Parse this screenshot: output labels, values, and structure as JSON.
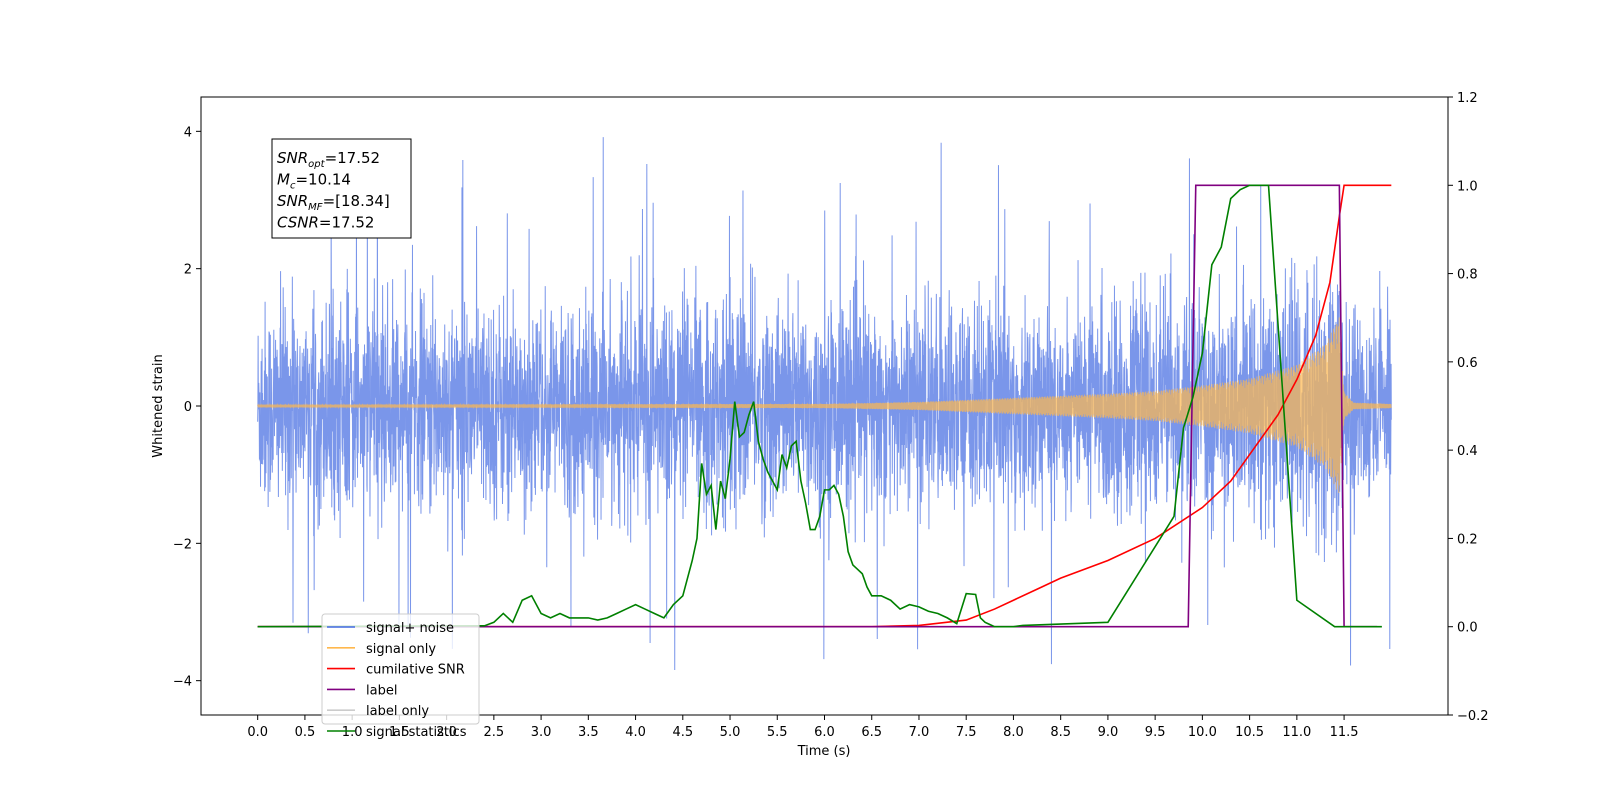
{
  "chart_data": {
    "type": "line",
    "xlabel": "Time (s)",
    "ylabel_left": "Whitened strain",
    "ylabel_right": "",
    "xlim": [
      -0.6,
      12.6
    ],
    "ylim_left": [
      -4.5,
      4.5
    ],
    "ylim_right": [
      -0.2,
      1.2
    ],
    "x_ticks": [
      0.0,
      0.5,
      1.0,
      1.5,
      2.0,
      2.5,
      3.0,
      3.5,
      4.0,
      4.5,
      5.0,
      5.5,
      6.0,
      6.5,
      7.0,
      7.5,
      8.0,
      8.5,
      9.0,
      9.5,
      10.0,
      10.5,
      11.0,
      11.5
    ],
    "x_tick_labels": [
      "0.0",
      "0.5",
      "1.0",
      "1.5",
      "2.0",
      "2.5",
      "3.0",
      "3.5",
      "4.0",
      "4.5",
      "5.0",
      "5.5",
      "6.0",
      "6.5",
      "7.0",
      "7.5",
      "8.0",
      "8.5",
      "9.0",
      "9.5",
      "10.0",
      "10.5",
      "11.0",
      "11.5"
    ],
    "y_left_ticks": [
      -4,
      -2,
      0,
      2,
      4
    ],
    "y_left_tick_labels": [
      "−4",
      "−2",
      "0",
      "2",
      "4"
    ],
    "y_right_ticks": [
      -0.2,
      0.0,
      0.2,
      0.4,
      0.6,
      0.8,
      1.0,
      1.2
    ],
    "y_right_tick_labels": [
      "−0.2",
      "0.0",
      "0.2",
      "0.4",
      "0.6",
      "0.8",
      "1.0",
      "1.2"
    ],
    "grid": false,
    "legend_placement": "lower-left",
    "annotation": {
      "lines": [
        {
          "base": "SNR",
          "sub": "opt",
          "rest": "=17.52"
        },
        {
          "base": "M",
          "sub": "c",
          "rest": "=10.14"
        },
        {
          "base": "SNR",
          "sub": "MF",
          "rest": "=[18.34]"
        },
        {
          "base": "CSNR",
          "sub": "",
          "rest": "=17.52"
        }
      ]
    },
    "noise_envelope": {
      "time_range": [
        0.0,
        12.0
      ],
      "typical_amplitude": 1.7,
      "max_spike": 4.1,
      "min_spike": -4.1
    },
    "signal_envelope": {
      "x": [
        0.0,
        6.0,
        7.0,
        8.0,
        9.0,
        9.5,
        10.0,
        10.5,
        11.0,
        11.3,
        11.45,
        11.5,
        11.6,
        12.0
      ],
      "amplitude": [
        0.02,
        0.03,
        0.06,
        0.12,
        0.18,
        0.22,
        0.3,
        0.4,
        0.6,
        0.9,
        1.3,
        0.2,
        0.05,
        0.03
      ]
    },
    "series": [
      {
        "name": "signal+ noise",
        "axis": "left",
        "color": "#4169e1"
      },
      {
        "name": "signal only",
        "axis": "left",
        "color": "#ffb84d"
      },
      {
        "name": "cumilative SNR",
        "axis": "right",
        "color": "#ff0000",
        "x": [
          0.0,
          6.5,
          7.0,
          7.5,
          7.8,
          8.0,
          8.3,
          8.5,
          9.0,
          9.5,
          10.0,
          10.3,
          10.5,
          10.8,
          11.0,
          11.2,
          11.35,
          11.45,
          11.5,
          12.0
        ],
        "y": [
          0.0,
          0.0,
          0.003,
          0.015,
          0.04,
          0.06,
          0.09,
          0.11,
          0.15,
          0.2,
          0.27,
          0.33,
          0.39,
          0.48,
          0.56,
          0.66,
          0.78,
          0.93,
          1.0,
          1.0
        ]
      },
      {
        "name": "label",
        "axis": "right",
        "color": "#800080",
        "x": [
          0.0,
          9.85,
          9.93,
          11.45,
          11.5,
          11.85
        ],
        "y": [
          0.0,
          0.0,
          1.0,
          1.0,
          0.0,
          0.0
        ]
      },
      {
        "name": "label only",
        "axis": "right",
        "color": "#cccccc",
        "x": [],
        "y": []
      },
      {
        "name": "signal statistics",
        "axis": "right",
        "color": "#008000",
        "x": [
          0.0,
          2.4,
          2.5,
          2.6,
          2.7,
          2.8,
          2.9,
          3.0,
          3.1,
          3.2,
          3.3,
          3.4,
          3.5,
          3.6,
          3.7,
          3.8,
          3.9,
          4.0,
          4.1,
          4.2,
          4.3,
          4.4,
          4.5,
          4.6,
          4.65,
          4.7,
          4.75,
          4.8,
          4.85,
          4.9,
          4.95,
          5.0,
          5.05,
          5.1,
          5.15,
          5.2,
          5.25,
          5.3,
          5.35,
          5.4,
          5.45,
          5.5,
          5.55,
          5.6,
          5.65,
          5.7,
          5.75,
          5.8,
          5.85,
          5.9,
          5.95,
          6.0,
          6.05,
          6.1,
          6.15,
          6.2,
          6.25,
          6.3,
          6.35,
          6.4,
          6.45,
          6.5,
          6.6,
          6.7,
          6.8,
          6.9,
          7.0,
          7.1,
          7.2,
          7.3,
          7.4,
          7.5,
          7.6,
          7.65,
          7.7,
          7.75,
          7.8,
          7.9,
          8.0,
          8.1,
          9.0,
          9.7,
          9.8,
          9.9,
          10.0,
          10.05,
          10.1,
          10.2,
          10.3,
          10.4,
          10.5,
          10.55,
          10.6,
          10.7,
          11.0,
          11.4,
          11.45,
          11.5,
          11.55,
          11.6,
          11.65,
          11.9
        ],
        "y": [
          0.0,
          0.002,
          0.01,
          0.03,
          0.01,
          0.06,
          0.07,
          0.03,
          0.02,
          0.03,
          0.02,
          0.02,
          0.02,
          0.015,
          0.02,
          0.03,
          0.04,
          0.05,
          0.04,
          0.03,
          0.02,
          0.05,
          0.07,
          0.15,
          0.2,
          0.37,
          0.3,
          0.32,
          0.22,
          0.33,
          0.29,
          0.38,
          0.51,
          0.43,
          0.44,
          0.48,
          0.51,
          0.42,
          0.38,
          0.35,
          0.33,
          0.31,
          0.39,
          0.36,
          0.41,
          0.42,
          0.33,
          0.28,
          0.22,
          0.22,
          0.25,
          0.31,
          0.31,
          0.32,
          0.3,
          0.25,
          0.17,
          0.14,
          0.13,
          0.12,
          0.09,
          0.07,
          0.07,
          0.06,
          0.04,
          0.05,
          0.045,
          0.035,
          0.03,
          0.02,
          0.007,
          0.075,
          0.073,
          0.02,
          0.01,
          0.005,
          0.0,
          0.0,
          0.0,
          0.003,
          0.01,
          0.25,
          0.45,
          0.52,
          0.62,
          0.72,
          0.82,
          0.86,
          0.97,
          0.99,
          1.0,
          1.0,
          1.0,
          1.0,
          0.06,
          0.0,
          0.0,
          0.0,
          0.0,
          0.0,
          0.0,
          0.0
        ]
      }
    ]
  }
}
